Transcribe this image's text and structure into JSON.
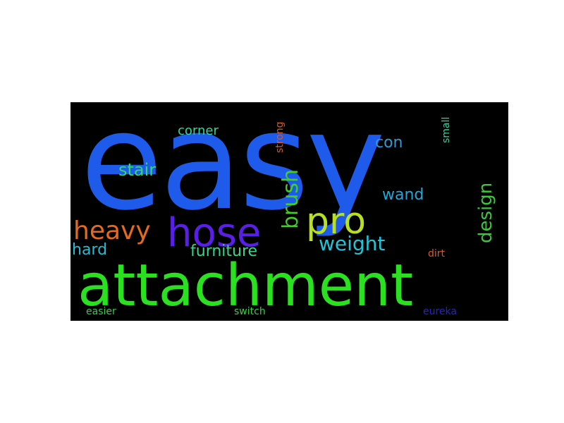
{
  "background_color": "#000000",
  "page_color": "#ffffff",
  "words": [
    {
      "text": "easy",
      "color": "#1f5bea"
    },
    {
      "text": "attachment",
      "color": "#2ae020"
    },
    {
      "text": "hose",
      "color": "#5a1fe6"
    },
    {
      "text": "pro",
      "color": "#b7e023"
    },
    {
      "text": "heavy",
      "color": "#e36a1f"
    },
    {
      "text": "brush",
      "color": "#40d020"
    },
    {
      "text": "weight",
      "color": "#22c3d6"
    },
    {
      "text": "design",
      "color": "#38c83a"
    },
    {
      "text": "stair",
      "color": "#33d66a"
    },
    {
      "text": "furniture",
      "color": "#33d68a"
    },
    {
      "text": "hard",
      "color": "#21bdd6"
    },
    {
      "text": "wand",
      "color": "#21a7d6"
    },
    {
      "text": "con",
      "color": "#2b9ad6"
    },
    {
      "text": "corner",
      "color": "#2fd6a0"
    },
    {
      "text": "strong",
      "color": "#e0571f"
    },
    {
      "text": "small",
      "color": "#2fd6a3"
    },
    {
      "text": "dirt",
      "color": "#e0591f"
    },
    {
      "text": "easier",
      "color": "#30d040"
    },
    {
      "text": "switch",
      "color": "#3ad040"
    },
    {
      "text": "eureka",
      "color": "#2420d6"
    }
  ]
}
